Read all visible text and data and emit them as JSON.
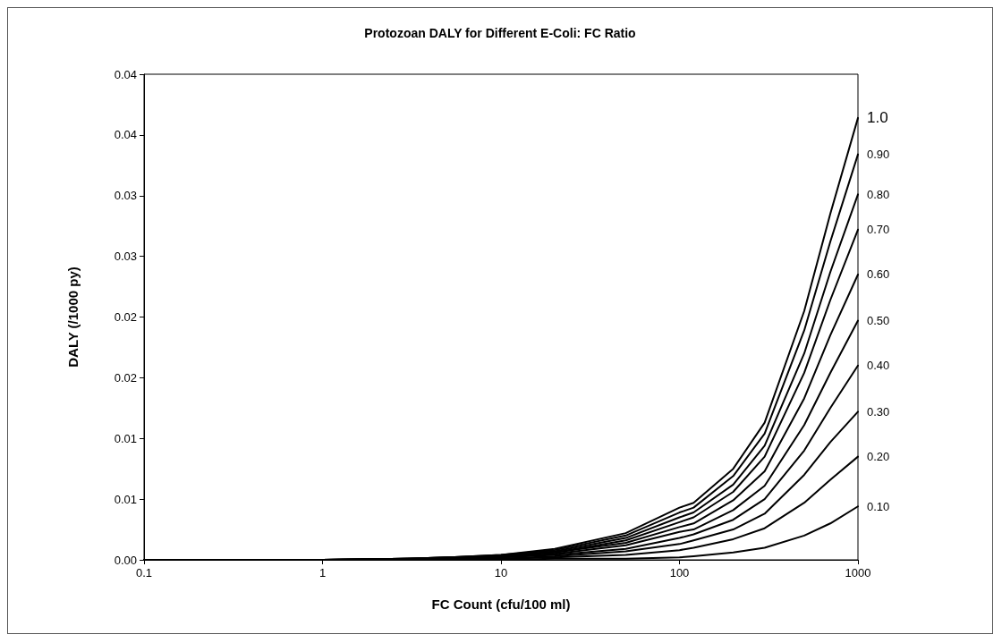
{
  "chart_data": {
    "type": "line",
    "title": "Protozoan DALY for Different E-Coli: FC Ratio",
    "xlabel": "FC Count (cfu/100 ml)",
    "ylabel": "DALY (/1000 py)",
    "log": "x",
    "grid": false,
    "legend": false,
    "marker": "none",
    "line_style": "solid",
    "x": [
      0.1,
      1,
      3,
      5,
      10,
      20,
      50,
      100,
      120,
      200,
      300,
      500,
      700,
      1000
    ],
    "xlim": [
      0.1,
      1000
    ],
    "xticks": [
      0.1,
      1,
      10,
      100,
      1000
    ],
    "ylim": [
      0,
      0.04
    ],
    "yticks": [
      {
        "value": 0,
        "label": "0.00"
      },
      {
        "value": 0.005,
        "label": "0.01"
      },
      {
        "value": 0.01,
        "label": "0.01"
      },
      {
        "value": 0.015,
        "label": "0.02"
      },
      {
        "value": 0.02,
        "label": "0.02"
      },
      {
        "value": 0.025,
        "label": "0.03"
      },
      {
        "value": 0.03,
        "label": "0.03"
      },
      {
        "value": 0.035,
        "label": "0.04"
      },
      {
        "value": 0.04,
        "label": "0.04"
      }
    ],
    "series": [
      {
        "name": "1.0",
        "color": "#000000",
        "values": [
          0,
          0,
          0.0001,
          0.0002,
          0.0004,
          0.0009,
          0.0022,
          0.0043,
          0.0047,
          0.0075,
          0.0113,
          0.0205,
          0.0285,
          0.0364
        ]
      },
      {
        "name": "0.90",
        "color": "#000000",
        "values": [
          0,
          0,
          0.0001,
          0.0002,
          0.0004,
          0.0008,
          0.002,
          0.0039,
          0.0043,
          0.0069,
          0.0104,
          0.0189,
          0.0262,
          0.0334
        ]
      },
      {
        "name": "0.80",
        "color": "#000000",
        "values": [
          0,
          0,
          0.0001,
          0.0002,
          0.0003,
          0.0007,
          0.0018,
          0.0035,
          0.0039,
          0.0062,
          0.0094,
          0.017,
          0.0237,
          0.0301
        ]
      },
      {
        "name": "0.70",
        "color": "#000000",
        "values": [
          0,
          0,
          0.0001,
          0.0001,
          0.0003,
          0.0006,
          0.0016,
          0.0031,
          0.0035,
          0.0056,
          0.0085,
          0.0154,
          0.0214,
          0.0272
        ]
      },
      {
        "name": "0.60",
        "color": "#000000",
        "values": [
          0,
          0,
          0.0001,
          0.0001,
          0.0003,
          0.0006,
          0.0014,
          0.0027,
          0.003,
          0.0049,
          0.0073,
          0.0133,
          0.0185,
          0.0235
        ]
      },
      {
        "name": "0.50",
        "color": "#000000",
        "values": [
          0,
          0,
          0,
          0.0001,
          0.0002,
          0.0005,
          0.0012,
          0.0023,
          0.0025,
          0.0041,
          0.0061,
          0.0111,
          0.0154,
          0.0197
        ]
      },
      {
        "name": "0.40",
        "color": "#000000",
        "values": [
          0,
          0,
          0,
          0.0001,
          0.0002,
          0.0004,
          0.0009,
          0.0018,
          0.0021,
          0.0033,
          0.005,
          0.009,
          0.0125,
          0.016
        ]
      },
      {
        "name": "0.30",
        "color": "#000000",
        "values": [
          0,
          0,
          0,
          0.0001,
          0.0001,
          0.0003,
          0.0007,
          0.0013,
          0.0016,
          0.0025,
          0.0038,
          0.007,
          0.0097,
          0.0122
        ]
      },
      {
        "name": "0.20",
        "color": "#000000",
        "values": [
          0,
          0,
          0,
          0,
          0.0001,
          0.0002,
          0.0004,
          0.0008,
          0.001,
          0.0017,
          0.0026,
          0.0047,
          0.0066,
          0.0085
        ]
      },
      {
        "name": "0.10",
        "color": "#000000",
        "values": [
          0,
          0,
          0,
          0,
          0,
          0.0001,
          0.0001,
          0.0002,
          0.0003,
          0.0006,
          0.001,
          0.002,
          0.003,
          0.0044
        ]
      }
    ]
  }
}
